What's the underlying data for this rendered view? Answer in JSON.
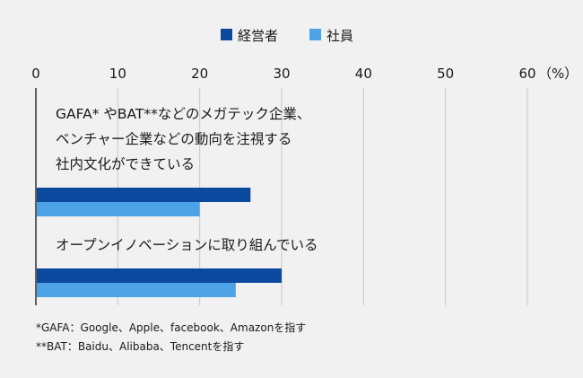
{
  "chart_data": {
    "type": "bar",
    "orientation": "horizontal",
    "categories": [
      [
        "GAFA* やBAT**などのメガテック企業、",
        "ベンチャー企業などの動向を注視する",
        "社内文化ができている"
      ],
      [
        "オープンイノベーションに取り組んでいる"
      ]
    ],
    "series": [
      {
        "name": "経営者",
        "color": "#0b4a9e",
        "values": [
          26.2,
          30.0
        ]
      },
      {
        "name": "社員",
        "color": "#4da3e5",
        "values": [
          20.0,
          24.4
        ]
      }
    ],
    "xlim": [
      0,
      60
    ],
    "xticks": [
      0,
      10,
      20,
      30,
      40,
      50,
      60
    ],
    "xtick_labels": [
      "0",
      "10",
      "20",
      "30",
      "40",
      "50",
      "60"
    ],
    "x_unit_label": "（%）",
    "legend_position": "top-center",
    "grid": true
  },
  "footnotes": [
    "*GAFA：Google、Apple、facebook、Amazonを指す",
    "**BAT：Baidu、Alibaba、Tencentを指す"
  ]
}
